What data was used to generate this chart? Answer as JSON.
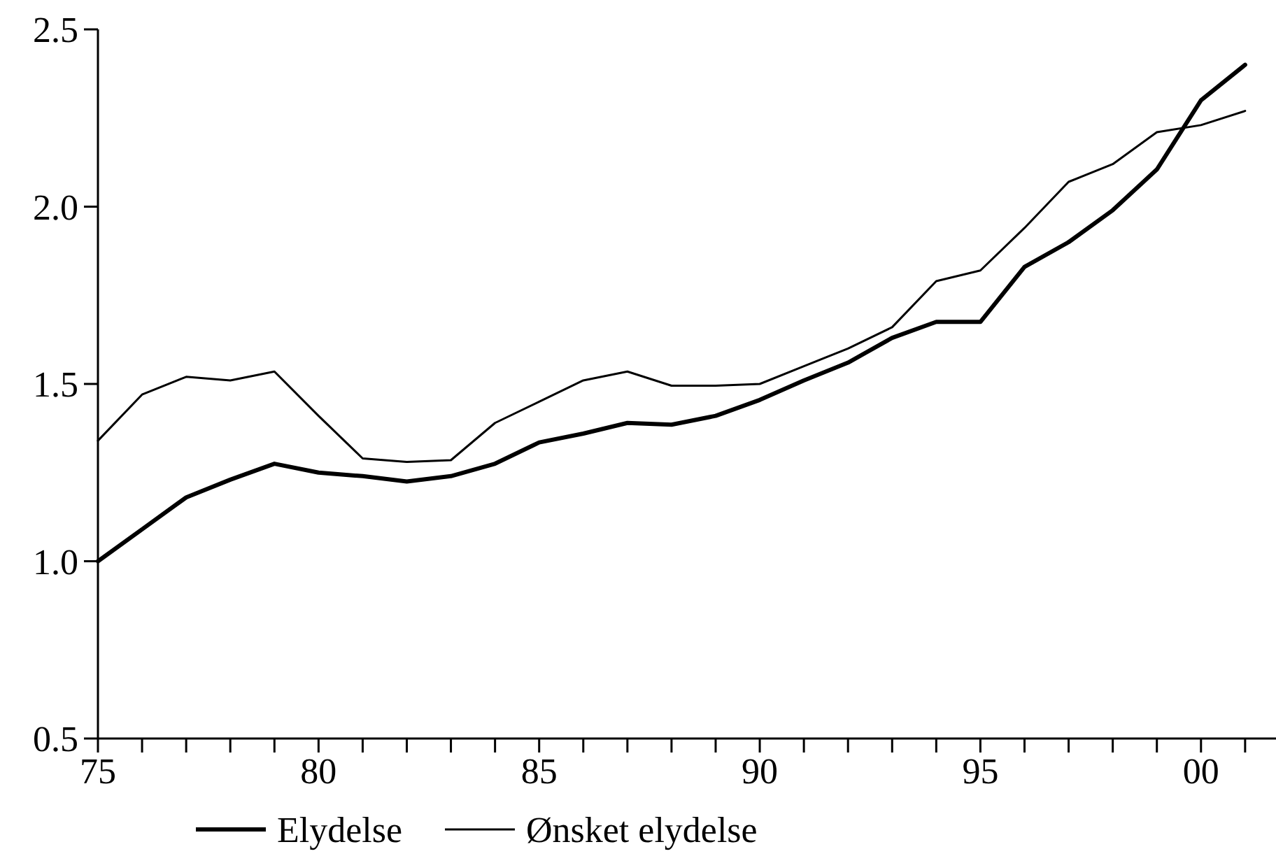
{
  "chart_data": {
    "type": "line",
    "x": [
      1975,
      1976,
      1977,
      1978,
      1979,
      1980,
      1981,
      1982,
      1983,
      1984,
      1985,
      1986,
      1987,
      1988,
      1989,
      1990,
      1991,
      1992,
      1993,
      1994,
      1995,
      1996,
      1997,
      1998,
      1999,
      2000,
      2001
    ],
    "series": [
      {
        "name": "Elydelse",
        "color": "#000000",
        "values": [
          1.0,
          1.09,
          1.18,
          1.23,
          1.275,
          1.25,
          1.24,
          1.225,
          1.24,
          1.275,
          1.335,
          1.36,
          1.39,
          1.385,
          1.41,
          1.455,
          1.51,
          1.56,
          1.63,
          1.675,
          1.675,
          1.83,
          1.9,
          1.99,
          2.105,
          2.3,
          2.4
        ]
      },
      {
        "name": "Ønsket elydelse",
        "color": "#000000",
        "values": [
          1.34,
          1.47,
          1.52,
          1.51,
          1.535,
          1.41,
          1.29,
          1.28,
          1.285,
          1.39,
          1.45,
          1.51,
          1.535,
          1.495,
          1.495,
          1.5,
          1.55,
          1.6,
          1.66,
          1.79,
          1.82,
          1.94,
          2.07,
          2.12,
          2.21,
          2.23,
          2.27
        ]
      }
    ],
    "xlim": [
      1975,
      2001.7
    ],
    "xticks": [
      {
        "value": 1975,
        "label": "75"
      },
      {
        "value": 1976,
        "label": null
      },
      {
        "value": 1977,
        "label": null
      },
      {
        "value": 1978,
        "label": null
      },
      {
        "value": 1979,
        "label": null
      },
      {
        "value": 1980,
        "label": "80"
      },
      {
        "value": 1981,
        "label": null
      },
      {
        "value": 1982,
        "label": null
      },
      {
        "value": 1983,
        "label": null
      },
      {
        "value": 1984,
        "label": null
      },
      {
        "value": 1985,
        "label": "85"
      },
      {
        "value": 1986,
        "label": null
      },
      {
        "value": 1987,
        "label": null
      },
      {
        "value": 1988,
        "label": null
      },
      {
        "value": 1989,
        "label": null
      },
      {
        "value": 1990,
        "label": "90"
      },
      {
        "value": 1991,
        "label": null
      },
      {
        "value": 1992,
        "label": null
      },
      {
        "value": 1993,
        "label": null
      },
      {
        "value": 1994,
        "label": null
      },
      {
        "value": 1995,
        "label": "95"
      },
      {
        "value": 1996,
        "label": null
      },
      {
        "value": 1997,
        "label": null
      },
      {
        "value": 1998,
        "label": null
      },
      {
        "value": 1999,
        "label": null
      },
      {
        "value": 2000,
        "label": "00"
      },
      {
        "value": 2001,
        "label": null
      }
    ],
    "ylim": [
      0.5,
      2.5
    ],
    "yticks": [
      {
        "value": 0.5,
        "label": "0.5"
      },
      {
        "value": 1.0,
        "label": "1.0"
      },
      {
        "value": 1.5,
        "label": "1.5"
      },
      {
        "value": 2.0,
        "label": "2.0"
      },
      {
        "value": 2.5,
        "label": "2.5"
      }
    ],
    "grid": false,
    "legend": "bottom",
    "marker": "none",
    "line_style": "solid"
  }
}
